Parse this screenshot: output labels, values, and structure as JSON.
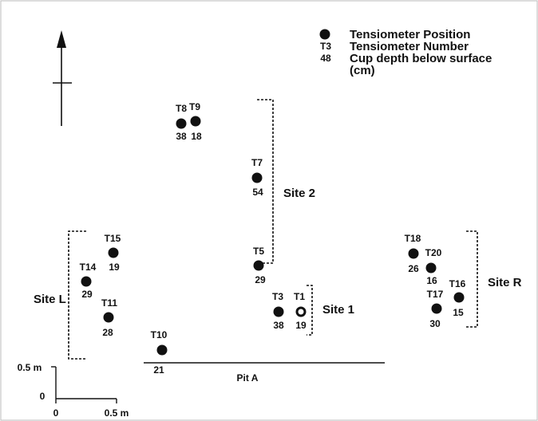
{
  "legend": {
    "marker_label": "Tensiometer Position",
    "number_example": "T3",
    "number_label": "Tensiometer Number",
    "depth_example": "48",
    "depth_label": [
      "Cup depth below surface",
      "(cm)"
    ]
  },
  "tensiometers": [
    {
      "label": "T8",
      "depth": "38"
    },
    {
      "label": "T9",
      "depth": "18"
    },
    {
      "label": "T7",
      "depth": "54"
    },
    {
      "label": "T5",
      "depth": "29"
    },
    {
      "label": "T3",
      "depth": "38"
    },
    {
      "label": "T1",
      "depth": "19"
    },
    {
      "label": "T15",
      "depth": "19"
    },
    {
      "label": "T14",
      "depth": "29"
    },
    {
      "label": "T11",
      "depth": "28"
    },
    {
      "label": "T10",
      "depth": "21"
    },
    {
      "label": "T18",
      "depth": "26"
    },
    {
      "label": "T20",
      "depth": "16"
    },
    {
      "label": "T17",
      "depth": "30"
    },
    {
      "label": "T16",
      "depth": "15"
    }
  ],
  "sites": [
    "Site L",
    "Site 2",
    "Site 1",
    "Site R"
  ],
  "pit": "Pit A",
  "scale": {
    "y_top": "0.5 m",
    "y_zero": "0",
    "x_zero": "0",
    "x_right": "0.5 m"
  }
}
